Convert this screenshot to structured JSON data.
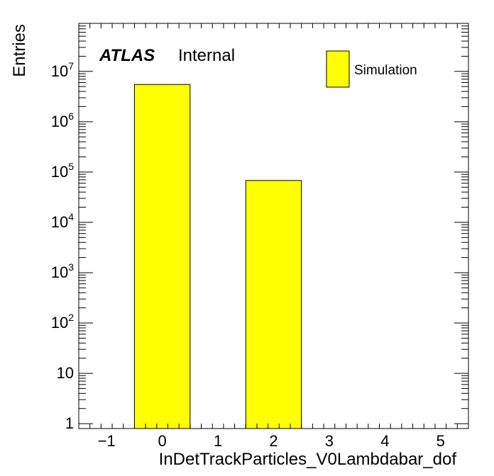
{
  "chart_data": {
    "type": "bar",
    "title": "",
    "xlabel": "InDetTrackParticles_V0Lambdabar_dof",
    "ylabel": "Entries",
    "yscale": "log",
    "xlim": [
      -1.5,
      5.5
    ],
    "ylim": [
      0.8,
      90000000
    ],
    "bins": [
      {
        "x_low": -0.5,
        "x_high": 0.5,
        "value": 5500000
      },
      {
        "x_low": 1.5,
        "x_high": 2.5,
        "value": 68000
      }
    ],
    "series": [
      {
        "name": "Simulation",
        "color": "#ffff00"
      }
    ],
    "x_ticks": [
      "−1",
      "0",
      "1",
      "2",
      "3",
      "4",
      "5"
    ],
    "y_ticks": [
      {
        "value": 1,
        "base": "1",
        "exp": ""
      },
      {
        "value": 10,
        "base": "10",
        "exp": ""
      },
      {
        "value": 100,
        "base": "10",
        "exp": "2"
      },
      {
        "value": 1000,
        "base": "10",
        "exp": "3"
      },
      {
        "value": 10000,
        "base": "10",
        "exp": "4"
      },
      {
        "value": 100000,
        "base": "10",
        "exp": "5"
      },
      {
        "value": 1000000,
        "base": "10",
        "exp": "6"
      },
      {
        "value": 10000000,
        "base": "10",
        "exp": "7"
      }
    ],
    "legend": {
      "position": "top-right",
      "label": "Simulation"
    },
    "annotation": {
      "experiment": "ATLAS",
      "status": "Internal"
    },
    "grid": false
  }
}
